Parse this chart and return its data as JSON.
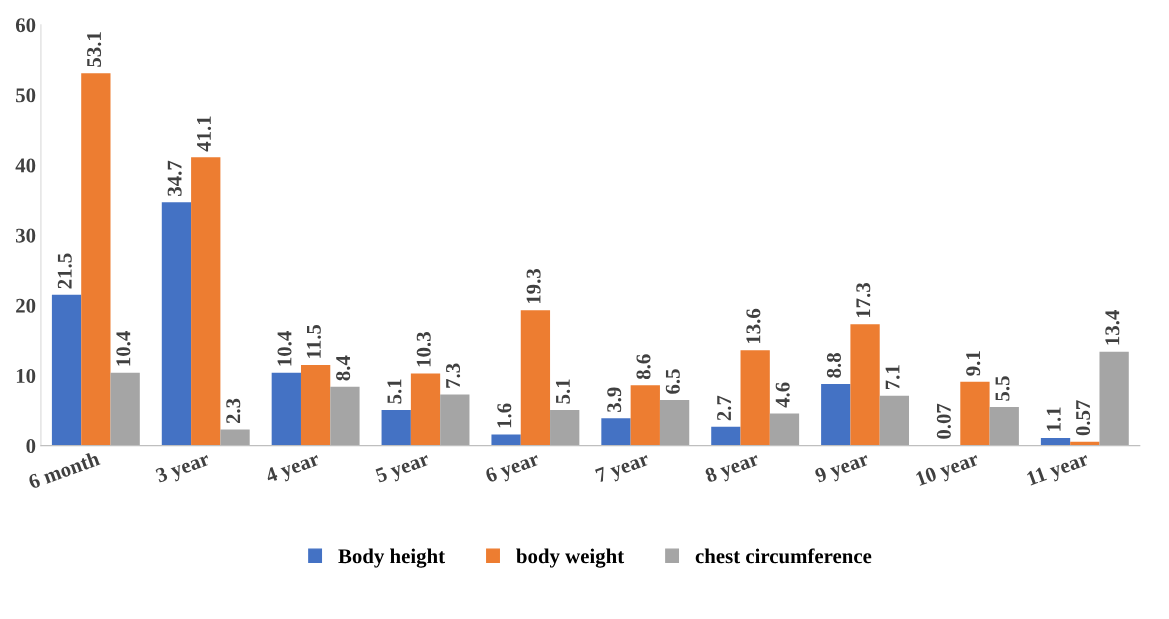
{
  "chart_data": {
    "type": "bar",
    "categories": [
      "6 month",
      "3 year",
      "4 year",
      "5 year",
      "6 year",
      "7 year",
      "8 year",
      "9 year",
      "10 year",
      "11 year"
    ],
    "series": [
      {
        "name": "Body height",
        "color": "#4472c4",
        "values": [
          21.5,
          34.7,
          10.4,
          5.1,
          1.6,
          3.9,
          2.7,
          8.8,
          0.07,
          1.1
        ]
      },
      {
        "name": "body weight",
        "color": "#ed7d31",
        "values": [
          53.1,
          41.1,
          11.5,
          10.3,
          19.3,
          8.6,
          13.6,
          17.3,
          9.1,
          0.57
        ]
      },
      {
        "name": "chest circumference",
        "color": "#a5a5a5",
        "values": [
          10.4,
          2.3,
          8.4,
          7.3,
          5.1,
          6.5,
          4.6,
          7.1,
          5.5,
          13.4
        ]
      }
    ],
    "ylim": [
      0,
      60
    ],
    "yticks": [
      0,
      10,
      20,
      30,
      40,
      50,
      60
    ],
    "grid": false,
    "legend": "bottom",
    "data_labels": true
  }
}
